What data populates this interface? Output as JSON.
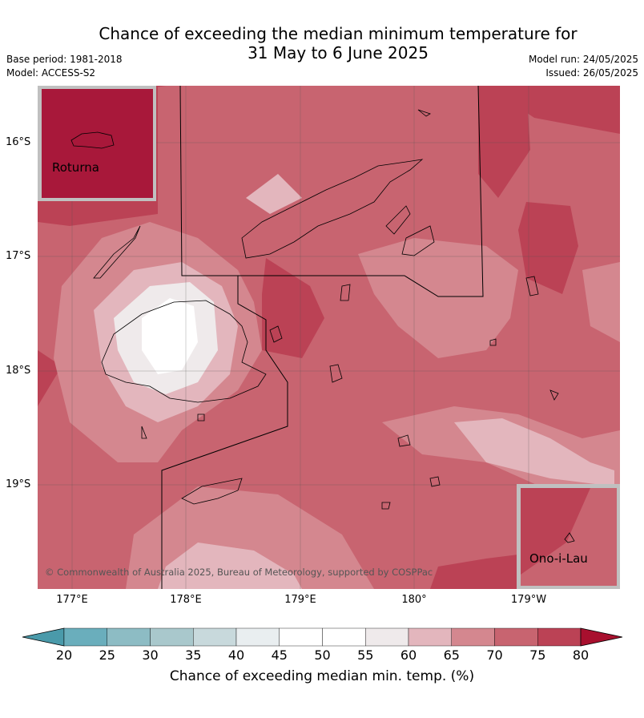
{
  "title": {
    "line1": "Chance of exceeding the median minimum temperature for",
    "line2": "31 May to 6 June 2025"
  },
  "meta": {
    "base_period": "Base period: 1981-2018",
    "model": "Model: ACCESS-S2",
    "model_run": "Model run: 24/05/2025",
    "issued": "Issued: 26/05/2025"
  },
  "map": {
    "latitude_labels": [
      "16°S",
      "17°S",
      "18°S",
      "19°S"
    ],
    "longitude_labels": [
      "177°E",
      "178°E",
      "179°E",
      "180°",
      "179°W"
    ],
    "copyright": "© Commonwealth of Australia 2025, Bureau of Meteorology, supported by COSPPac",
    "insets": [
      {
        "name": "Roturna",
        "value_percent": 80
      },
      {
        "name": "Ono-i-Lau",
        "value_percent": 75
      }
    ]
  },
  "colorbar": {
    "ticks": [
      "20",
      "25",
      "30",
      "35",
      "40",
      "45",
      "50",
      "55",
      "60",
      "65",
      "70",
      "75",
      "80"
    ],
    "label": "Chance of exceeding median min. temp. (%)",
    "colors": [
      "#4a9aaa",
      "#6aaebc",
      "#8dbcc4",
      "#a9c8cc",
      "#c8d9dc",
      "#e9eef0",
      "#ffffff",
      "#ffffff",
      "#efeaeb",
      "#e3b6bd",
      "#d4878f",
      "#c86470",
      "#bb4255",
      "#a8102e"
    ]
  }
}
